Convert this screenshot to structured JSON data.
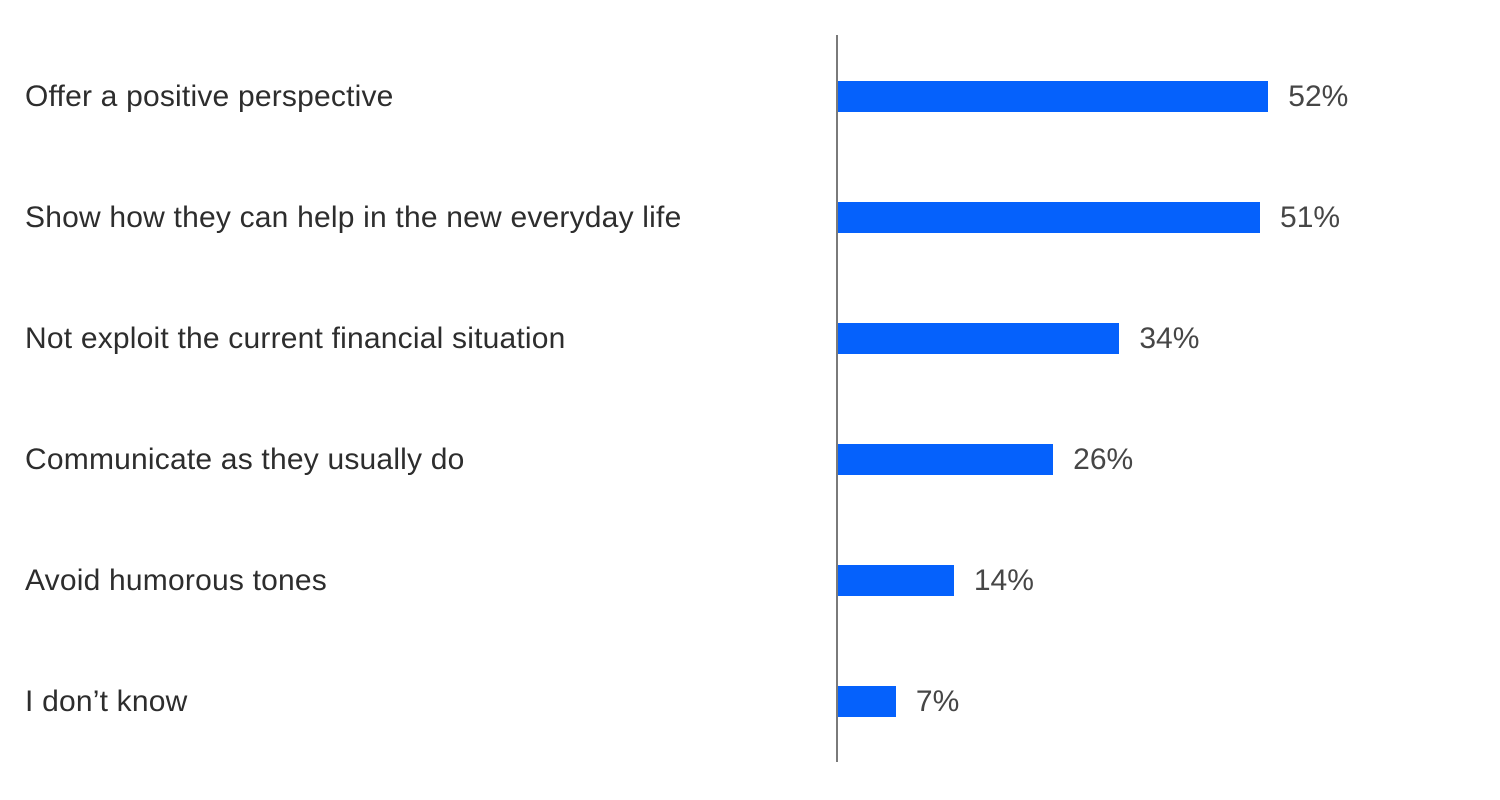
{
  "chart_data": {
    "type": "bar",
    "orientation": "horizontal",
    "title": "",
    "xlabel": "",
    "ylabel": "",
    "grid": false,
    "legend": false,
    "xlim": [
      0,
      80
    ],
    "categories": [
      "Offer a positive perspective",
      "Show how they can help in the new everyday life",
      "Not exploit the current financial situation",
      "Communicate as they usually do",
      "Avoid humorous tones",
      "I don’t know"
    ],
    "values": [
      52,
      51,
      34,
      26,
      14,
      7
    ],
    "value_labels": [
      "52%",
      "51%",
      "34%",
      "26%",
      "14%",
      "7%"
    ],
    "colors": {
      "bar": "#0561fc",
      "axis": "#7a7a7a",
      "category_text": "#2d2d2d",
      "value_text": "#464646",
      "background": "#ffffff"
    }
  }
}
